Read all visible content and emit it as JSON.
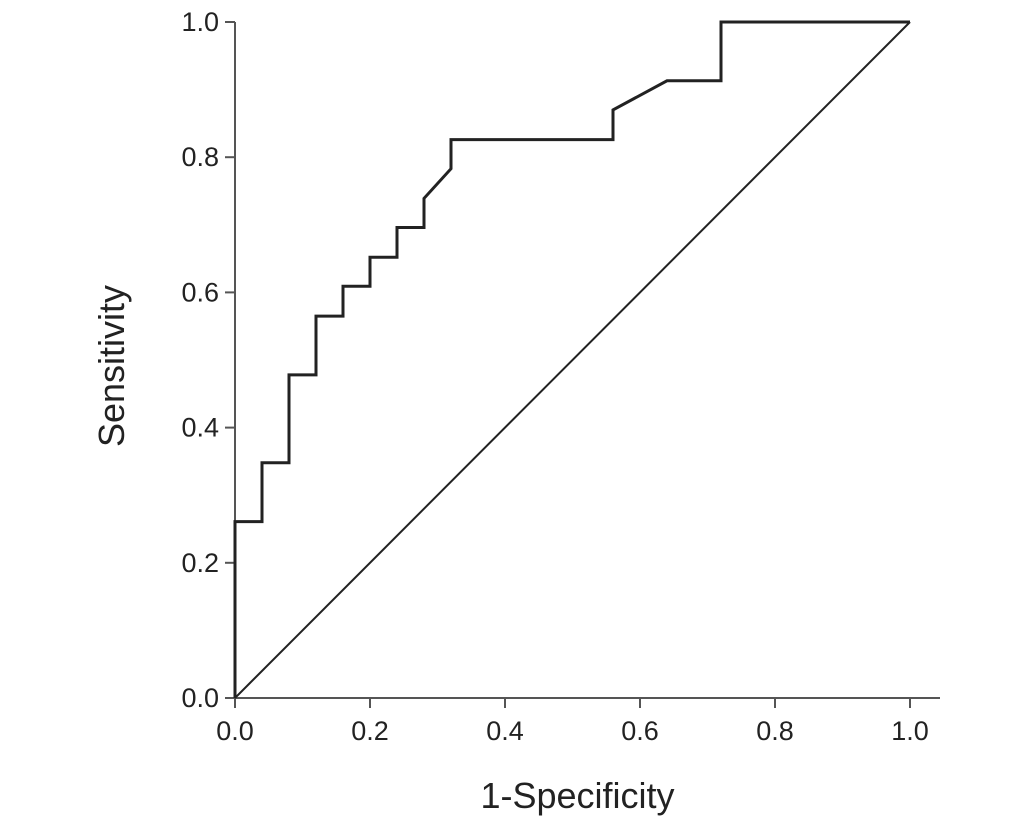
{
  "chart_data": {
    "type": "line",
    "title": "",
    "xlabel": "1-Specificity",
    "ylabel": "Sensitivity",
    "xlim": [
      0,
      1
    ],
    "ylim": [
      0,
      1
    ],
    "x_ticks": [
      "0.0",
      "0.2",
      "0.4",
      "0.6",
      "0.8",
      "1.0"
    ],
    "y_ticks": [
      "0.0",
      "0.2",
      "0.4",
      "0.6",
      "0.8",
      "1.0"
    ],
    "grid": false,
    "legend": "none",
    "series": [
      {
        "x": [
          0.0,
          0.0,
          0.04,
          0.04,
          0.08,
          0.08,
          0.12,
          0.12,
          0.16,
          0.16,
          0.2,
          0.2,
          0.24,
          0.24,
          0.28,
          0.28,
          0.32,
          0.32,
          0.56,
          0.56,
          0.64,
          0.72,
          0.72,
          1.0
        ],
        "y": [
          0.0,
          0.261,
          0.261,
          0.348,
          0.348,
          0.478,
          0.478,
          0.565,
          0.565,
          0.609,
          0.609,
          0.652,
          0.652,
          0.696,
          0.696,
          0.739,
          0.783,
          0.826,
          0.826,
          0.87,
          0.913,
          0.913,
          1.0,
          1.0
        ]
      },
      {
        "x": [
          0.0,
          1.0
        ],
        "y": [
          0.0,
          1.0
        ]
      }
    ],
    "colors": {
      "line": "#222222",
      "axis": "#555555"
    }
  }
}
